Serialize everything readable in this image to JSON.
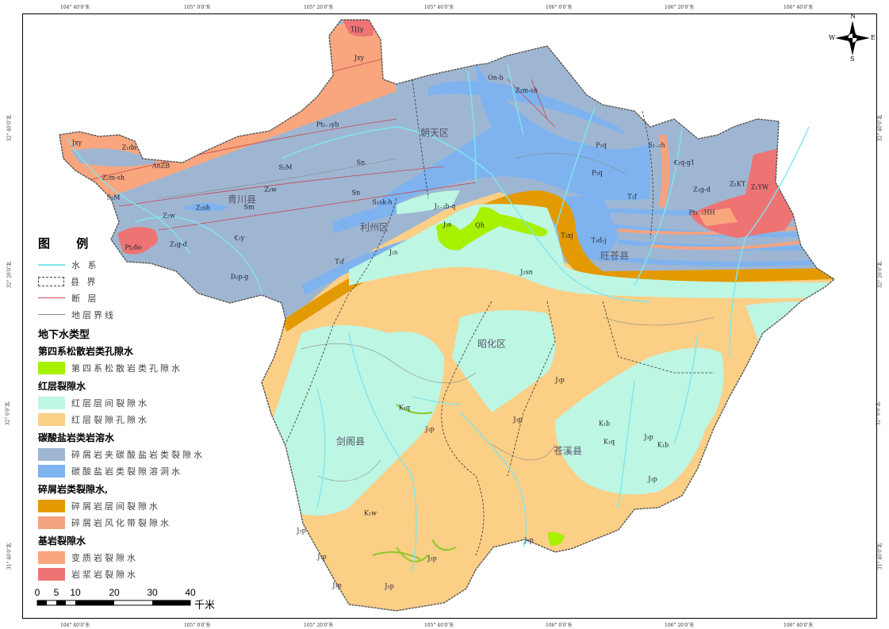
{
  "coords": {
    "top": [
      "104° 40′0″东",
      "105° 0′0″东",
      "105° 20′0″东",
      "105° 40′0″东",
      "106° 0′0″东",
      "106° 20′0″东",
      "106° 40′0″东"
    ],
    "left": [
      "32° 40′0″北",
      "32° 20′0″北",
      "32° 0′0″北",
      "31° 40′0″北"
    ]
  },
  "compass": {
    "n": "N",
    "s": "S",
    "e": "E",
    "w": "W"
  },
  "counties": [
    "青川县",
    "朝天区",
    "利州区",
    "旺苍县",
    "昭化区",
    "剑阁县",
    "苍溪县"
  ],
  "strata": [
    "T∏γ",
    "Jxy",
    "Pt₂₋₃yb",
    "Jxy",
    "Z₁da",
    "AnZB",
    "Z₂m-sh",
    "S₂M",
    "S₂M",
    "Z₂w",
    "Sn",
    "Sn",
    "Z₂sh",
    "Sm",
    "Z₂w",
    "S₁sk-h",
    "Ꞓ₁y",
    "Z₁g-d",
    "Pt₂δo",
    "D₂p-g",
    "J₁₋₂b-q",
    "J₂s",
    "Qh",
    "J₂s",
    "T₃f",
    "On-b",
    "Z₂m-sh",
    "P₁q",
    "P₁q",
    "S₁₋₂h",
    "Ꞓ₁q-g1",
    "Z₁g-d",
    "Z₁KT",
    "Z₁YW",
    "Pt₁₋₂HH",
    "T₁f",
    "T₃xj",
    "T₃d-j",
    "J₂sn",
    "J₃p",
    "K₁q",
    "J₃p",
    "K₁b",
    "K₁q",
    "J₃p",
    "K₁b",
    "J₃p",
    "K₁w",
    "J₃p",
    "J₃p",
    "J₃p",
    "J₃p",
    "J₃p",
    "J₃p",
    "J₃p"
  ],
  "legend": {
    "title": "图 例",
    "lines": [
      {
        "label": "水 系",
        "color": "#7fe6ef"
      },
      {
        "label": "县 界",
        "color": "#444"
      },
      {
        "label": "断 层",
        "color": "#c8454f"
      },
      {
        "label": "地层界线",
        "color": "#888"
      }
    ],
    "groundwater_title": "地下水类型",
    "groups": [
      {
        "title": "第四系松散岩类孔隙水",
        "items": [
          {
            "label": "第四系松散岩类孔隙水",
            "color": "#a6f000"
          }
        ]
      },
      {
        "title": "红层裂隙水",
        "items": [
          {
            "label": "红层层间裂隙水",
            "color": "#bdf6e3"
          },
          {
            "label": "红层裂隙孔隙水",
            "color": "#fbcf86"
          }
        ]
      },
      {
        "title": "碳酸盐岩类岩溶水",
        "items": [
          {
            "label": "碎屑岩夹碳酸盐岩类裂隙水",
            "color": "#9fb6d2"
          },
          {
            "label": "碳酸盐岩类裂隙溶洞水",
            "color": "#7eb3ef"
          }
        ]
      },
      {
        "title": "碎屑岩类裂隙水,",
        "items": [
          {
            "label": "碎屑岩层间裂隙水",
            "color": "#e39a00"
          },
          {
            "label": "碎屑岩风化带裂隙水",
            "color": "#f4a381"
          }
        ]
      },
      {
        "title": "基岩裂隙水",
        "items": [
          {
            "label": "变质岩裂隙水",
            "color": "#f9a67e"
          },
          {
            "label": "岩浆岩裂隙水",
            "color": "#ee7474"
          }
        ]
      }
    ]
  },
  "scale": {
    "ticks": [
      "0",
      "5",
      "10",
      "20",
      "30",
      "40"
    ],
    "unit": "千米"
  }
}
